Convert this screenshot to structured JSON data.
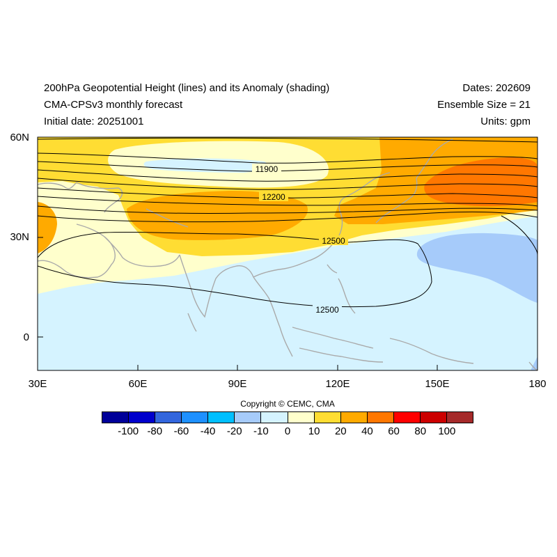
{
  "header": {
    "title": "200hPa Geopotential Height (lines) and its Anomaly (shading)",
    "model": "CMA-CPSv3 monthly forecast",
    "initial_date": "Initial date: 20251001",
    "dates": "Dates: 202609",
    "ensemble": "Ensemble Size = 21",
    "units": "Units: gpm"
  },
  "axes": {
    "lon_labels": [
      "30E",
      "60E",
      "90E",
      "120E",
      "150E",
      "180"
    ],
    "lat_labels": [
      "60N",
      "30N",
      "0"
    ]
  },
  "contour_labels": [
    "11900",
    "12200",
    "12500",
    "12500"
  ],
  "colorbar": {
    "colors": [
      "#000099",
      "#0000cc",
      "#3366dd",
      "#1e90ff",
      "#00bfff",
      "#a6cbfa",
      "#d5f3ff",
      "#ffffcc",
      "#ffdd33",
      "#ffaa00",
      "#ff7700",
      "#ff0000",
      "#cc0000",
      "#a52a2a"
    ],
    "labels": [
      "-100",
      "-80",
      "-60",
      "-40",
      "-20",
      "-10",
      "0",
      "10",
      "20",
      "40",
      "60",
      "80",
      "100"
    ]
  },
  "copyright": "Copyright © CEMC, CMA"
}
